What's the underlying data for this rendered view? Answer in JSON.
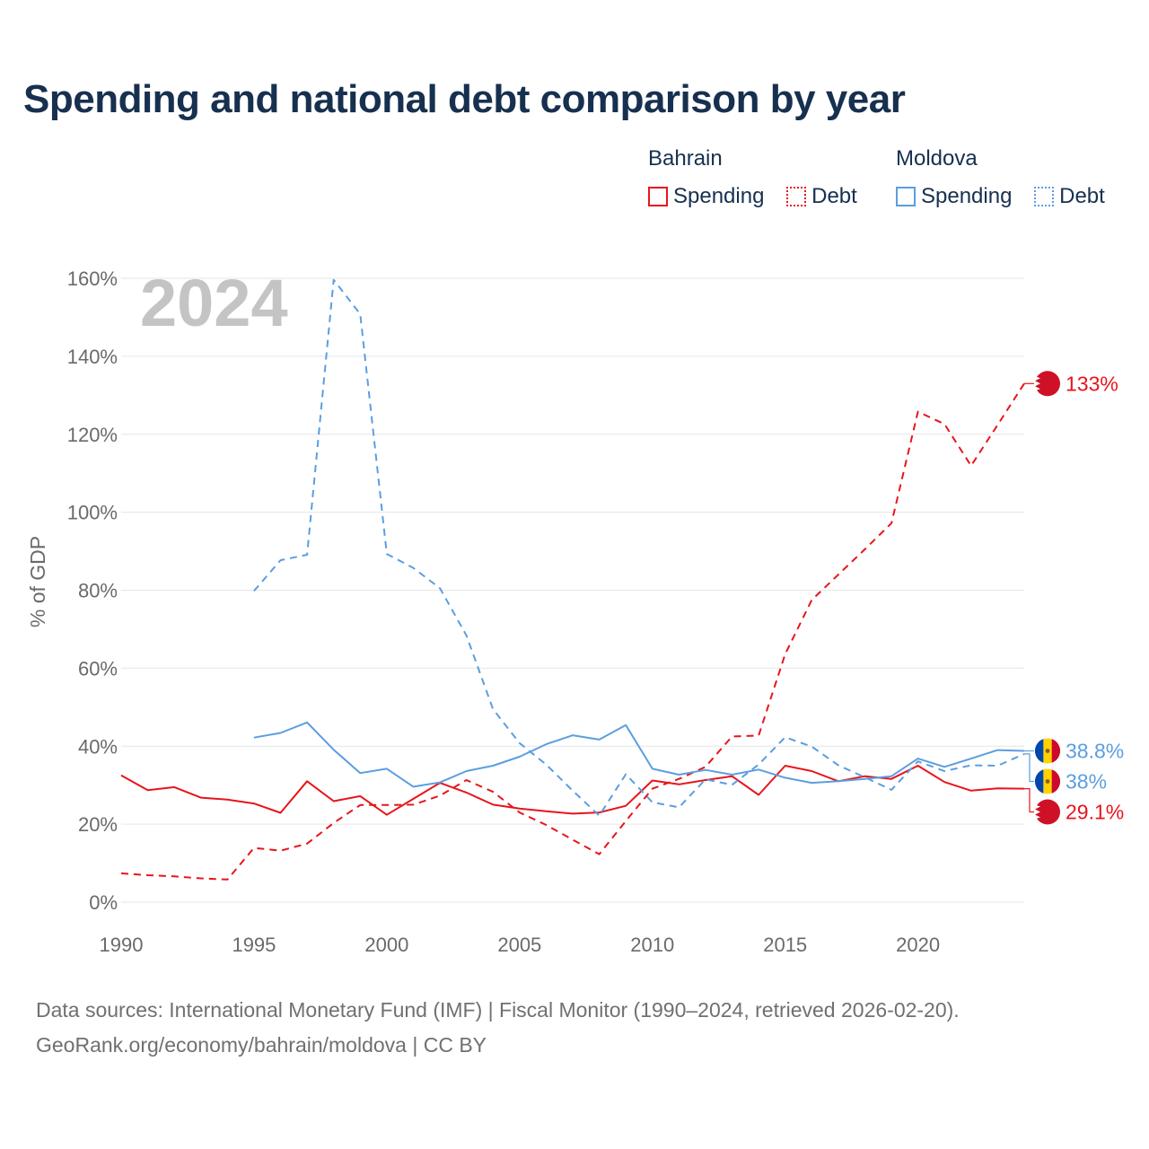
{
  "title": "Spending and national debt comparison by year",
  "legend": {
    "groups": [
      {
        "name": "Bahrain",
        "items": [
          {
            "label": "Spending",
            "style": "solid"
          },
          {
            "label": "Debt",
            "style": "dotted"
          }
        ],
        "color": "#e8141b"
      },
      {
        "name": "Moldova",
        "items": [
          {
            "label": "Spending",
            "style": "solid"
          },
          {
            "label": "Debt",
            "style": "dotted"
          }
        ],
        "color": "#5b9ee0"
      }
    ]
  },
  "year_watermark": "2024",
  "footer": {
    "line1": "Data sources: International Monetary Fund (IMF) | Fiscal Monitor (1990–2024, retrieved 2026-02-20).",
    "line2": "GeoRank.org/economy/bahrain/moldova | CC BY"
  },
  "chart_data": {
    "type": "line",
    "title": "Spending and national debt comparison by year",
    "xlabel": "",
    "ylabel": "% of GDP",
    "xlim": [
      1990,
      2024
    ],
    "ylim": [
      0,
      160
    ],
    "yticks": [
      0,
      20,
      40,
      60,
      80,
      100,
      120,
      140,
      160
    ],
    "ytick_labels": [
      "0%",
      "20%",
      "40%",
      "60%",
      "80%",
      "100%",
      "120%",
      "140%",
      "160%"
    ],
    "xticks": [
      1990,
      1995,
      2000,
      2005,
      2010,
      2015,
      2020
    ],
    "xtick_labels": [
      "1990",
      "1995",
      "2000",
      "2005",
      "2010",
      "2015",
      "2020"
    ],
    "grid": true,
    "series": [
      {
        "name": "Bahrain Spending",
        "country": "Bahrain",
        "metric": "Spending",
        "color": "#e8141b",
        "dash": "solid",
        "end_label": "29.1%",
        "points": [
          [
            1990,
            32.5
          ],
          [
            1991,
            28.7
          ],
          [
            1992,
            29.5
          ],
          [
            1993,
            26.8
          ],
          [
            1994,
            26.3
          ],
          [
            1995,
            25.3
          ],
          [
            1996,
            22.9
          ],
          [
            1997,
            31.0
          ],
          [
            1998,
            25.9
          ],
          [
            1999,
            27.2
          ],
          [
            2000,
            22.4
          ],
          [
            2001,
            26.5
          ],
          [
            2002,
            30.6
          ],
          [
            2003,
            28.1
          ],
          [
            2004,
            25.0
          ],
          [
            2005,
            24.0
          ],
          [
            2006,
            23.3
          ],
          [
            2007,
            22.7
          ],
          [
            2008,
            23.0
          ],
          [
            2009,
            24.7
          ],
          [
            2010,
            31.2
          ],
          [
            2011,
            30.2
          ],
          [
            2012,
            31.3
          ],
          [
            2013,
            32.3
          ],
          [
            2014,
            27.5
          ],
          [
            2015,
            35.0
          ],
          [
            2016,
            33.6
          ],
          [
            2017,
            31.0
          ],
          [
            2018,
            32.3
          ],
          [
            2019,
            31.6
          ],
          [
            2020,
            35.0
          ],
          [
            2021,
            30.8
          ],
          [
            2022,
            28.6
          ],
          [
            2023,
            29.2
          ],
          [
            2024,
            29.1
          ]
        ]
      },
      {
        "name": "Bahrain Debt",
        "country": "Bahrain",
        "metric": "Debt",
        "color": "#e8141b",
        "dash": "dashed",
        "end_label": "133%",
        "points": [
          [
            1990,
            7.4
          ],
          [
            1991,
            6.9
          ],
          [
            1992,
            6.6
          ],
          [
            1993,
            6.1
          ],
          [
            1994,
            5.8
          ],
          [
            1995,
            13.9
          ],
          [
            1996,
            13.2
          ],
          [
            1997,
            15.0
          ],
          [
            1998,
            20.3
          ],
          [
            1999,
            24.9
          ],
          [
            2000,
            24.9
          ],
          [
            2001,
            25.0
          ],
          [
            2002,
            27.3
          ],
          [
            2003,
            31.3
          ],
          [
            2004,
            28.3
          ],
          [
            2005,
            23.0
          ],
          [
            2006,
            19.8
          ],
          [
            2007,
            16.0
          ],
          [
            2008,
            12.3
          ],
          [
            2009,
            20.8
          ],
          [
            2010,
            29.1
          ],
          [
            2011,
            31.6
          ],
          [
            2012,
            34.7
          ],
          [
            2013,
            42.5
          ],
          [
            2014,
            42.7
          ],
          [
            2015,
            63.6
          ],
          [
            2016,
            77.5
          ],
          [
            2017,
            84.0
          ],
          [
            2018,
            90.5
          ],
          [
            2019,
            97.2
          ],
          [
            2020,
            125.8
          ],
          [
            2021,
            122.6
          ],
          [
            2022,
            111.9
          ],
          [
            2023,
            122.4
          ],
          [
            2024,
            133.0
          ]
        ]
      },
      {
        "name": "Moldova Spending",
        "country": "Moldova",
        "metric": "Spending",
        "color": "#5b9ee0",
        "dash": "solid",
        "end_label": "38.8%",
        "points": [
          [
            1995,
            42.2
          ],
          [
            1996,
            43.4
          ],
          [
            1997,
            46.1
          ],
          [
            1998,
            39.1
          ],
          [
            1999,
            33.1
          ],
          [
            2000,
            34.2
          ],
          [
            2001,
            29.6
          ],
          [
            2002,
            30.7
          ],
          [
            2003,
            33.6
          ],
          [
            2004,
            35.0
          ],
          [
            2005,
            37.3
          ],
          [
            2006,
            40.5
          ],
          [
            2007,
            42.8
          ],
          [
            2008,
            41.7
          ],
          [
            2009,
            45.4
          ],
          [
            2010,
            34.2
          ],
          [
            2011,
            32.7
          ],
          [
            2012,
            33.9
          ],
          [
            2013,
            32.7
          ],
          [
            2014,
            34.0
          ],
          [
            2015,
            31.9
          ],
          [
            2016,
            30.6
          ],
          [
            2017,
            31.0
          ],
          [
            2018,
            31.6
          ],
          [
            2019,
            32.3
          ],
          [
            2020,
            36.8
          ],
          [
            2021,
            34.7
          ],
          [
            2022,
            36.8
          ],
          [
            2023,
            39.0
          ],
          [
            2024,
            38.8
          ]
        ]
      },
      {
        "name": "Moldova Debt",
        "country": "Moldova",
        "metric": "Debt",
        "color": "#5b9ee0",
        "dash": "dashed",
        "end_label": "38%",
        "points": [
          [
            1995,
            79.8
          ],
          [
            1996,
            87.7
          ],
          [
            1997,
            89.1
          ],
          [
            1998,
            159.6
          ],
          [
            1999,
            150.8
          ],
          [
            2000,
            89.3
          ],
          [
            2001,
            85.7
          ],
          [
            2002,
            80.5
          ],
          [
            2003,
            68.4
          ],
          [
            2004,
            49.5
          ],
          [
            2005,
            40.8
          ],
          [
            2006,
            35.3
          ],
          [
            2007,
            28.6
          ],
          [
            2008,
            22.2
          ],
          [
            2009,
            32.8
          ],
          [
            2010,
            25.6
          ],
          [
            2011,
            24.3
          ],
          [
            2012,
            31.5
          ],
          [
            2013,
            30.1
          ],
          [
            2014,
            35.3
          ],
          [
            2015,
            42.3
          ],
          [
            2016,
            39.9
          ],
          [
            2017,
            35.1
          ],
          [
            2018,
            32.0
          ],
          [
            2019,
            28.8
          ],
          [
            2020,
            36.1
          ],
          [
            2021,
            33.6
          ],
          [
            2022,
            35.1
          ],
          [
            2023,
            35.0
          ],
          [
            2024,
            38.0
          ]
        ]
      }
    ]
  }
}
